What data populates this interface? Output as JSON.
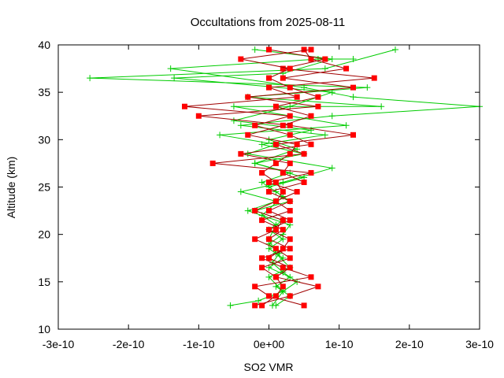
{
  "chart_data": {
    "type": "line",
    "title": "Occultations from 2025-08-11",
    "xlabel": "SO2 VMR",
    "ylabel": "Altitude (km)",
    "xlim": [
      -3e-10,
      3e-10
    ],
    "ylim": [
      10,
      40
    ],
    "grid": false,
    "legend": "none",
    "x_ticks": [
      {
        "value": -3e-10,
        "label": "-3e-10"
      },
      {
        "value": -2e-10,
        "label": "-2e-10"
      },
      {
        "value": -1e-10,
        "label": "-1e-10"
      },
      {
        "value": 0,
        "label": "0e+00"
      },
      {
        "value": 1e-10,
        "label": "1e-10"
      },
      {
        "value": 2e-10,
        "label": "2e-10"
      },
      {
        "value": 3e-10,
        "label": "3e-10"
      }
    ],
    "y_ticks": [
      {
        "value": 10,
        "label": "10"
      },
      {
        "value": 15,
        "label": "15"
      },
      {
        "value": 20,
        "label": "20"
      },
      {
        "value": 25,
        "label": "25"
      },
      {
        "value": 30,
        "label": "30"
      },
      {
        "value": 35,
        "label": "35"
      },
      {
        "value": 40,
        "label": "40"
      }
    ],
    "series": [
      {
        "marker": "square",
        "color": "#ff0000",
        "line_color": "#a00000",
        "points": [
          [
            5e-11,
            12.5
          ],
          [
            0.0,
            13.5
          ],
          [
            -2e-11,
            14.5
          ],
          [
            6e-11,
            15.5
          ],
          [
            2e-11,
            16.5
          ],
          [
            -1e-11,
            17.5
          ],
          [
            3e-11,
            18.5
          ],
          [
            0.0,
            19.5
          ],
          [
            2e-11,
            20.5
          ],
          [
            -1e-11,
            21.5
          ],
          [
            3e-11,
            22.5
          ],
          [
            1e-11,
            23.5
          ],
          [
            4e-11,
            24.5
          ],
          [
            0.0,
            25.5
          ],
          [
            6e-11,
            26.5
          ],
          [
            -8e-11,
            27.5
          ],
          [
            5e-11,
            28.5
          ],
          [
            1e-11,
            29.5
          ],
          [
            1.2e-10,
            30.5
          ],
          [
            3e-11,
            31.5
          ],
          [
            -1e-10,
            32.5
          ],
          [
            7e-11,
            33.5
          ],
          [
            -3e-11,
            34.5
          ],
          [
            1.2e-10,
            35.5
          ],
          [
            2e-11,
            36.5
          ],
          [
            1.1e-10,
            37.5
          ],
          [
            6e-11,
            38.5
          ],
          [
            5e-11,
            39.5
          ]
        ]
      },
      {
        "marker": "square",
        "color": "#ff0000",
        "line_color": "#a00000",
        "points": [
          [
            -2e-11,
            12.5
          ],
          [
            3e-11,
            13.5
          ],
          [
            7e-11,
            14.5
          ],
          [
            1e-11,
            15.5
          ],
          [
            3e-11,
            16.5
          ],
          [
            0.0,
            17.5
          ],
          [
            2e-11,
            18.5
          ],
          [
            3e-11,
            19.5
          ],
          [
            0.0,
            20.5
          ],
          [
            3e-11,
            21.5
          ],
          [
            0.0,
            22.5
          ],
          [
            3e-11,
            23.5
          ],
          [
            0.0,
            24.5
          ],
          [
            5e-11,
            25.5
          ],
          [
            2e-11,
            26.5
          ],
          [
            3e-11,
            27.5
          ],
          [
            -4e-11,
            28.5
          ],
          [
            6e-11,
            29.5
          ],
          [
            3e-11,
            30.5
          ],
          [
            -2e-11,
            31.5
          ],
          [
            3e-11,
            32.5
          ],
          [
            -1.2e-10,
            33.5
          ],
          [
            4e-11,
            34.5
          ],
          [
            0.0,
            35.5
          ],
          [
            1.5e-10,
            36.5
          ],
          [
            2e-11,
            37.5
          ],
          [
            8e-11,
            38.5
          ],
          [
            0.0,
            39.5
          ]
        ]
      },
      {
        "marker": "square",
        "color": "#ff0000",
        "line_color": "#a00000",
        "points": [
          [
            -1e-11,
            12.5
          ],
          [
            1e-11,
            13.5
          ],
          [
            2e-11,
            14.5
          ],
          [
            1e-11,
            15.5
          ],
          [
            -1e-11,
            16.5
          ],
          [
            3e-11,
            17.5
          ],
          [
            1e-11,
            18.5
          ],
          [
            -2e-11,
            19.5
          ],
          [
            1e-11,
            20.5
          ],
          [
            2e-11,
            21.5
          ],
          [
            -2e-11,
            22.5
          ],
          [
            1e-11,
            23.5
          ],
          [
            2e-11,
            24.5
          ],
          [
            1e-11,
            25.5
          ],
          [
            -1e-11,
            26.5
          ],
          [
            1e-11,
            27.5
          ],
          [
            3e-11,
            28.5
          ],
          [
            4e-11,
            29.5
          ],
          [
            -3e-11,
            30.5
          ],
          [
            2e-11,
            31.5
          ],
          [
            6e-11,
            32.5
          ],
          [
            1e-11,
            33.5
          ],
          [
            7e-11,
            34.5
          ],
          [
            3e-11,
            35.5
          ],
          [
            0.0,
            36.5
          ],
          [
            3e-11,
            37.5
          ],
          [
            -4e-11,
            38.5
          ],
          [
            6e-11,
            39.5
          ]
        ]
      }
    ],
    "series_green": [
      {
        "marker": "plus",
        "color": "#00cc00",
        "points": [
          [
            -5.5e-11,
            12.5
          ],
          [
            -1.5e-11,
            13.0
          ],
          [
            2e-11,
            14.0
          ],
          [
            4e-11,
            15.0
          ],
          [
            2e-11,
            16.0
          ],
          [
            5e-12,
            17.0
          ],
          [
            1.5e-11,
            18.0
          ],
          [
            0.0,
            19.0
          ],
          [
            2e-11,
            20.0
          ],
          [
            3e-11,
            21.0
          ],
          [
            -3e-11,
            22.5
          ],
          [
            1e-11,
            23.5
          ],
          [
            -4e-11,
            24.5
          ],
          [
            2e-11,
            25.5
          ],
          [
            9e-11,
            27.0
          ],
          [
            -3e-11,
            28.5
          ],
          [
            1e-11,
            29.5
          ],
          [
            -7e-11,
            30.5
          ],
          [
            1.1e-10,
            31.5
          ],
          [
            -5e-11,
            33.5
          ],
          [
            1.6e-10,
            33.5
          ],
          [
            -3e-11,
            34.5
          ],
          [
            1.4e-10,
            35.5
          ],
          [
            -2.55e-10,
            36.5
          ],
          [
            8e-11,
            37.5
          ],
          [
            1.8e-10,
            39.5
          ]
        ]
      },
      {
        "marker": "plus",
        "color": "#00cc00",
        "points": [
          [
            1e-11,
            12.5
          ],
          [
            3e-11,
            13.5
          ],
          [
            1e-11,
            14.5
          ],
          [
            3e-11,
            15.5
          ],
          [
            0.0,
            16.5
          ],
          [
            2e-11,
            17.5
          ],
          [
            0.0,
            18.5
          ],
          [
            2e-11,
            19.5
          ],
          [
            0.0,
            20.5
          ],
          [
            2e-11,
            21.5
          ],
          [
            -2e-11,
            22.5
          ],
          [
            3e-11,
            23.5
          ],
          [
            1e-11,
            24.5
          ],
          [
            -1e-11,
            25.5
          ],
          [
            3e-11,
            26.5
          ],
          [
            -2e-11,
            27.5
          ],
          [
            5e-11,
            28.5
          ],
          [
            -1e-11,
            29.5
          ],
          [
            8e-11,
            30.5
          ],
          [
            -4e-11,
            31.5
          ],
          [
            9e-11,
            32.5
          ],
          [
            3e-10,
            33.5
          ],
          [
            1.2e-10,
            34.5
          ],
          [
            5e-11,
            35.5
          ],
          [
            -1.4e-10,
            37.5
          ],
          [
            7e-11,
            38.5
          ],
          [
            1.2e-10,
            38.5
          ]
        ]
      },
      {
        "marker": "plus",
        "color": "#00cc00",
        "points": [
          [
            5e-12,
            12.5
          ],
          [
            2e-11,
            14.0
          ],
          [
            0.0,
            15.5
          ],
          [
            3e-11,
            16.5
          ],
          [
            1e-11,
            18.0
          ],
          [
            0.0,
            19.5
          ],
          [
            1e-11,
            21.0
          ],
          [
            -1e-11,
            22.0
          ],
          [
            2e-11,
            24.0
          ],
          [
            0.0,
            25.0
          ],
          [
            5e-11,
            26.0
          ],
          [
            -2e-11,
            27.5
          ],
          [
            4e-11,
            29.0
          ],
          [
            0.0,
            30.0
          ],
          [
            6e-11,
            31.0
          ],
          [
            -5e-11,
            32.0
          ],
          [
            3e-11,
            33.5
          ],
          [
            9e-11,
            35.0
          ],
          [
            -1.35e-10,
            36.5
          ],
          [
            2e-11,
            37.0
          ],
          [
            9e-11,
            38.5
          ],
          [
            -2e-11,
            39.5
          ]
        ]
      }
    ]
  }
}
